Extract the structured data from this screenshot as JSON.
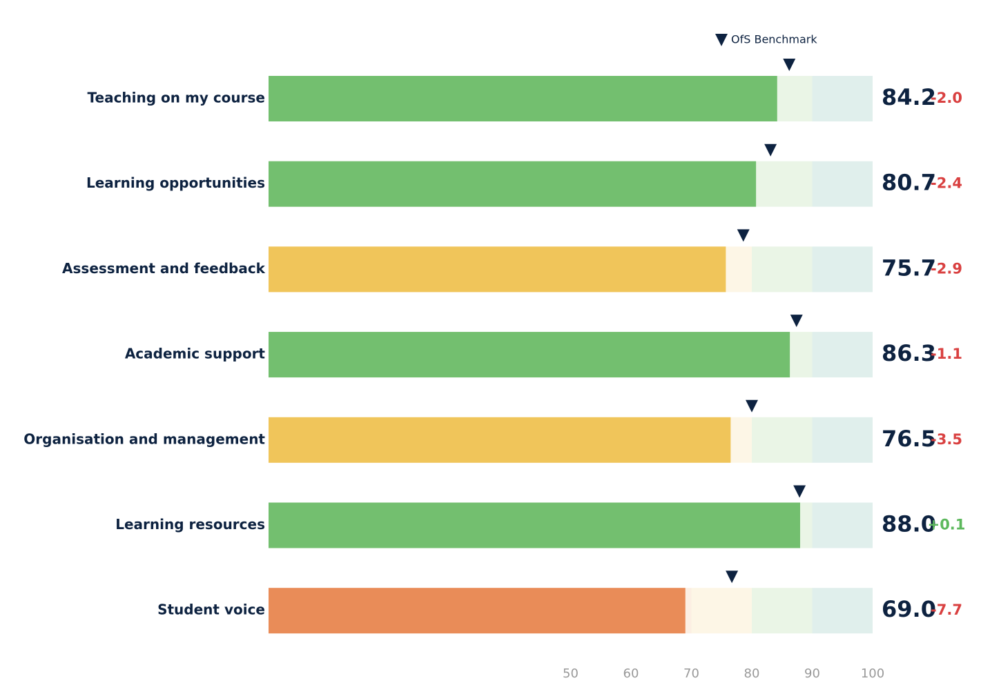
{
  "chart_data": {
    "type": "bullet",
    "benchmark_name": "OfS Benchmark",
    "categories": [
      "Teaching on my course",
      "Learning opportunities",
      "Assessment and feedback",
      "Academic support",
      "Organisation and management",
      "Learning resources",
      "Student voice"
    ],
    "values": [
      84.2,
      80.7,
      75.7,
      86.3,
      76.5,
      88.0,
      69.0
    ],
    "value_labels": [
      "84.2",
      "80.7",
      "75.7",
      "86.3",
      "76.5",
      "88.0",
      "69.0"
    ],
    "colors": [
      "#73bf6f",
      "#73bf6f",
      "#f0c55a",
      "#73bf6f",
      "#f0c55a",
      "#73bf6f",
      "#e98c58"
    ],
    "benchmarks": [
      86.2,
      83.1,
      78.6,
      87.4,
      80.0,
      87.9,
      76.7
    ],
    "differences": [
      -2.0,
      -2.4,
      -2.9,
      -1.1,
      -3.5,
      0.1,
      -7.7
    ],
    "difference_labels": [
      "-2.0",
      "-2.4",
      "-2.9",
      "-1.1",
      "-3.5",
      "+0.1",
      "-7.7"
    ],
    "ranges": [
      {
        "from": 0,
        "to": 70,
        "color": "#fcefe3"
      },
      {
        "from": 70,
        "to": 80,
        "color": "#fdf6e6"
      },
      {
        "from": 80,
        "to": 90,
        "color": "#eaf5e6"
      },
      {
        "from": 90,
        "to": 100,
        "color": "#e0efec"
      }
    ],
    "xlim": [
      0,
      100
    ],
    "xticks": [
      50,
      60,
      70,
      80,
      90,
      100
    ]
  }
}
